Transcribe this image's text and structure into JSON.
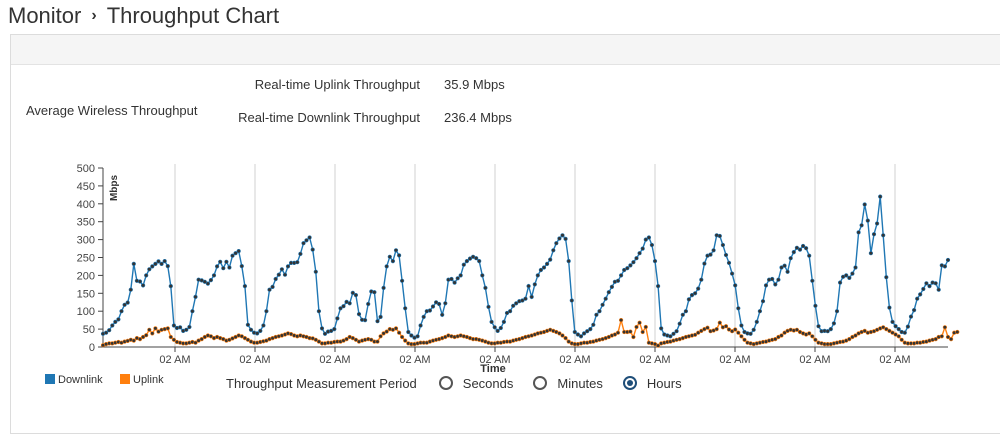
{
  "breadcrumb": {
    "parent": "Monitor",
    "separator": "›",
    "current": "Throughput Chart"
  },
  "realtime": {
    "uplink_label": "Real-time Uplink Throughput",
    "uplink_value": "35.9 Mbps",
    "downlink_label": "Real-time Downlink Throughput",
    "downlink_value": "236.4 Mbps"
  },
  "chart_title": "Average Wireless Throughput",
  "legend": {
    "downlink": "Downlink",
    "uplink": "Uplink"
  },
  "measurement": {
    "label": "Throughput Measurement Period",
    "options": [
      "Seconds",
      "Minutes",
      "Hours"
    ],
    "selected": "Hours"
  },
  "colors": {
    "downlink": "#1f77b4",
    "uplink": "#ff7f0e",
    "accent": "#1f4e79"
  },
  "chart_data": {
    "type": "line",
    "title": "Average Wireless Throughput",
    "xlabel": "Time",
    "ylabel": "Mbps",
    "ylim": [
      0,
      500
    ],
    "y_ticks": [
      0,
      50,
      100,
      150,
      200,
      250,
      300,
      350,
      400,
      450,
      500
    ],
    "x_tick_labels": [
      "02 AM",
      "02 AM",
      "02 AM",
      "02 AM",
      "02 AM",
      "02 AM",
      "02 AM",
      "02 AM",
      "02 AM",
      "02 AM"
    ],
    "grid": "vertical",
    "legend": "bottom-left",
    "series": [
      {
        "name": "Downlink",
        "color": "#1f77b4",
        "values": [
          37,
          40,
          47,
          60,
          70,
          77,
          100,
          118,
          124,
          160,
          232,
          185,
          183,
          172,
          200,
          217,
          225,
          232,
          239,
          232,
          240,
          226,
          170,
          60,
          53,
          55,
          45,
          48,
          56,
          100,
          140,
          188,
          186,
          182,
          177,
          187,
          200,
          225,
          238,
          220,
          238,
          222,
          255,
          262,
          268,
          226,
          170,
          62,
          48,
          40,
          38,
          45,
          60,
          100,
          160,
          168,
          190,
          202,
          217,
          202,
          225,
          235,
          235,
          237,
          260,
          290,
          298,
          306,
          272,
          210,
          100,
          52,
          37,
          43,
          45,
          50,
          80,
          108,
          114,
          126,
          122,
          151,
          145,
          92,
          76,
          75,
          120,
          155,
          153,
          72,
          84,
          165,
          225,
          252,
          240,
          270,
          256,
          185,
          108,
          42,
          32,
          26,
          30,
          60,
          84,
          100,
          102,
          113,
          125,
          120,
          90,
          122,
          188,
          190,
          180,
          192,
          200,
          230,
          240,
          247,
          252,
          248,
          240,
          200,
          165,
          112,
          70,
          55,
          45,
          53,
          70,
          95,
          100,
          115,
          122,
          128,
          130,
          135,
          170,
          140,
          175,
          200,
          215,
          222,
          232,
          244,
          270,
          290,
          303,
          312,
          302,
          240,
          130,
          42,
          35,
          30,
          38,
          44,
          50,
          62,
          90,
          100,
          118,
          135,
          153,
          168,
          182,
          185,
          200,
          215,
          220,
          228,
          237,
          248,
          262,
          275,
          300,
          306,
          285,
          240,
          170,
          52,
          35,
          32,
          30,
          37,
          44,
          65,
          90,
          100,
          133,
          145,
          150,
          163,
          188,
          233,
          255,
          258,
          270,
          312,
          310,
          285,
          257,
          235,
          205,
          172,
          108,
          60,
          42,
          38,
          37,
          48,
          70,
          100,
          128,
          172,
          188,
          190,
          175,
          188,
          222,
          227,
          210,
          248,
          265,
          277,
          272,
          282,
          276,
          255,
          185,
          115,
          58,
          44,
          45,
          44,
          50,
          66,
          100,
          180,
          196,
          200,
          193,
          205,
          222,
          320,
          340,
          398,
          353,
          262,
          315,
          345,
          420,
          312,
          195,
          110,
          70,
          58,
          50,
          42,
          40,
          57,
          85,
          103,
          135,
          147,
          162,
          178,
          170,
          180,
          178,
          160,
          228,
          225,
          243
        ]
      },
      {
        "name": "Uplink",
        "color": "#ff7f0e",
        "values": [
          5,
          8,
          10,
          10,
          12,
          14,
          12,
          15,
          17,
          20,
          18,
          25,
          22,
          28,
          33,
          48,
          38,
          52,
          43,
          48,
          50,
          52,
          28,
          20,
          14,
          12,
          10,
          10,
          12,
          14,
          12,
          18,
          22,
          28,
          32,
          30,
          25,
          28,
          25,
          22,
          18,
          20,
          24,
          28,
          32,
          30,
          25,
          20,
          15,
          12,
          12,
          14,
          16,
          18,
          22,
          25,
          28,
          30,
          32,
          35,
          38,
          36,
          32,
          30,
          32,
          30,
          28,
          25,
          24,
          20,
          15,
          10,
          10,
          12,
          12,
          14,
          15,
          15,
          18,
          22,
          28,
          25,
          20,
          15,
          18,
          20,
          22,
          20,
          15,
          15,
          30,
          38,
          43,
          50,
          48,
          52,
          40,
          28,
          18,
          10,
          8,
          8,
          10,
          12,
          12,
          12,
          15,
          18,
          20,
          22,
          25,
          28,
          32,
          30,
          28,
          30,
          32,
          30,
          28,
          25,
          22,
          22,
          20,
          18,
          15,
          12,
          10,
          10,
          12,
          12,
          14,
          15,
          15,
          18,
          20,
          22,
          25,
          28,
          30,
          32,
          35,
          38,
          40,
          42,
          45,
          48,
          45,
          42,
          38,
          32,
          25,
          15,
          10,
          8,
          8,
          10,
          12,
          12,
          14,
          15,
          18,
          20,
          22,
          25,
          28,
          32,
          35,
          40,
          75,
          42,
          42,
          43,
          28,
          56,
          68,
          42,
          56,
          12,
          10,
          8,
          4,
          10,
          12,
          14,
          15,
          18,
          20,
          22,
          25,
          28,
          30,
          32,
          34,
          40,
          45,
          50,
          54,
          44,
          46,
          50,
          68,
          55,
          58,
          49,
          44,
          49,
          40,
          30,
          20,
          12,
          10,
          8,
          10,
          12,
          14,
          15,
          18,
          20,
          22,
          28,
          32,
          40,
          45,
          48,
          46,
          48,
          42,
          38,
          35,
          38,
          30,
          20,
          12,
          10,
          8,
          8,
          8,
          10,
          12,
          14,
          15,
          18,
          22,
          28,
          32,
          38,
          42,
          45,
          40,
          42,
          44,
          48,
          52,
          55,
          50,
          45,
          40,
          35,
          30,
          20,
          12,
          10,
          10,
          10,
          12,
          12,
          14,
          15,
          18,
          20,
          22,
          28,
          30,
          55,
          28,
          22,
          40,
          42
        ]
      }
    ]
  }
}
